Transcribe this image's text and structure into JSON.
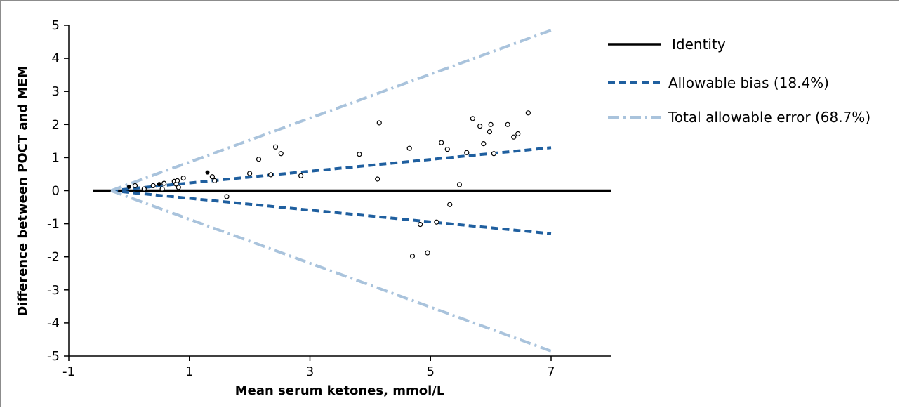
{
  "chart_data": {
    "type": "scatter",
    "xlabel": "Mean serum ketones, mmol/L",
    "ylabel": "Difference between POCT and MEM",
    "xlim": [
      -1,
      8
    ],
    "ylim": [
      -5,
      5
    ],
    "x_ticks": [
      -1,
      1,
      3,
      5,
      7
    ],
    "y_ticks": [
      -5,
      -4,
      -3,
      -2,
      -1,
      0,
      1,
      2,
      3,
      4,
      5
    ],
    "grid": false,
    "legend_position": "top-right",
    "lines": [
      {
        "name": "Identity",
        "style": "solid",
        "color": "#000000",
        "points": [
          [
            -0.6,
            0
          ],
          [
            8,
            0
          ]
        ]
      },
      {
        "name": "Allowable bias (18.4%)",
        "style": "dashed",
        "color": "#1f5f9f",
        "points": [
          [
            -0.3,
            0
          ],
          [
            7,
            1.3
          ]
        ]
      },
      {
        "name": "",
        "style": "dashed",
        "color": "#1f5f9f",
        "points": [
          [
            -0.3,
            0
          ],
          [
            7,
            -1.3
          ]
        ]
      },
      {
        "name": "Total allowable error (68.7%)",
        "style": "dashdot",
        "color": "#a9c3dc",
        "points": [
          [
            -0.3,
            0
          ],
          [
            7,
            4.85
          ]
        ]
      },
      {
        "name": "",
        "style": "dashdot",
        "color": "#a9c3dc",
        "points": [
          [
            -0.3,
            0
          ],
          [
            7,
            -4.85
          ]
        ]
      }
    ],
    "points": [
      {
        "x": 0.0,
        "y": 0.12,
        "marker": "dot"
      },
      {
        "x": 0.1,
        "y": 0.15,
        "marker": "open"
      },
      {
        "x": 0.25,
        "y": 0.05,
        "marker": "open"
      },
      {
        "x": 0.4,
        "y": 0.15,
        "marker": "open"
      },
      {
        "x": 0.5,
        "y": 0.2,
        "marker": "dot"
      },
      {
        "x": 0.55,
        "y": 0.05,
        "marker": "open"
      },
      {
        "x": 0.58,
        "y": 0.22,
        "marker": "open"
      },
      {
        "x": 0.75,
        "y": 0.28,
        "marker": "open"
      },
      {
        "x": 0.78,
        "y": 0.2,
        "marker": "open"
      },
      {
        "x": 0.8,
        "y": 0.3,
        "marker": "open"
      },
      {
        "x": 0.82,
        "y": 0.1,
        "marker": "open"
      },
      {
        "x": 0.9,
        "y": 0.38,
        "marker": "open"
      },
      {
        "x": 1.3,
        "y": 0.55,
        "marker": "dot"
      },
      {
        "x": 1.38,
        "y": 0.42,
        "marker": "open"
      },
      {
        "x": 1.42,
        "y": 0.3,
        "marker": "open"
      },
      {
        "x": 1.62,
        "y": -0.18,
        "marker": "open"
      },
      {
        "x": 2.0,
        "y": 0.52,
        "marker": "open"
      },
      {
        "x": 2.15,
        "y": 0.95,
        "marker": "open"
      },
      {
        "x": 2.35,
        "y": 0.48,
        "marker": "open"
      },
      {
        "x": 2.43,
        "y": 1.32,
        "marker": "open"
      },
      {
        "x": 2.52,
        "y": 1.12,
        "marker": "open"
      },
      {
        "x": 2.85,
        "y": 0.45,
        "marker": "open"
      },
      {
        "x": 3.82,
        "y": 1.1,
        "marker": "open"
      },
      {
        "x": 4.12,
        "y": 0.35,
        "marker": "open"
      },
      {
        "x": 4.15,
        "y": 2.05,
        "marker": "open"
      },
      {
        "x": 4.65,
        "y": 1.28,
        "marker": "open"
      },
      {
        "x": 4.7,
        "y": -1.98,
        "marker": "open"
      },
      {
        "x": 4.83,
        "y": -1.02,
        "marker": "open"
      },
      {
        "x": 4.95,
        "y": -1.88,
        "marker": "open"
      },
      {
        "x": 5.1,
        "y": -0.95,
        "marker": "open"
      },
      {
        "x": 5.18,
        "y": 1.45,
        "marker": "open"
      },
      {
        "x": 5.28,
        "y": 1.25,
        "marker": "open"
      },
      {
        "x": 5.32,
        "y": -0.42,
        "marker": "open"
      },
      {
        "x": 5.48,
        "y": 0.18,
        "marker": "open"
      },
      {
        "x": 5.6,
        "y": 1.15,
        "marker": "open"
      },
      {
        "x": 5.7,
        "y": 2.18,
        "marker": "open"
      },
      {
        "x": 5.82,
        "y": 1.95,
        "marker": "open"
      },
      {
        "x": 5.88,
        "y": 1.42,
        "marker": "open"
      },
      {
        "x": 5.98,
        "y": 1.78,
        "marker": "open"
      },
      {
        "x": 6.0,
        "y": 2.0,
        "marker": "open"
      },
      {
        "x": 6.05,
        "y": 1.12,
        "marker": "open"
      },
      {
        "x": 6.28,
        "y": 2.0,
        "marker": "open"
      },
      {
        "x": 6.38,
        "y": 1.62,
        "marker": "open"
      },
      {
        "x": 6.45,
        "y": 1.72,
        "marker": "open"
      },
      {
        "x": 6.62,
        "y": 2.35,
        "marker": "open"
      }
    ],
    "legend": [
      {
        "label": "Identity",
        "style": "solid",
        "color": "#000000"
      },
      {
        "label": "Allowable bias (18.4%)",
        "style": "dashed",
        "color": "#1f5f9f"
      },
      {
        "label": "Total allowable error (68.7%)",
        "style": "dashdot",
        "color": "#a9c3dc"
      }
    ]
  }
}
